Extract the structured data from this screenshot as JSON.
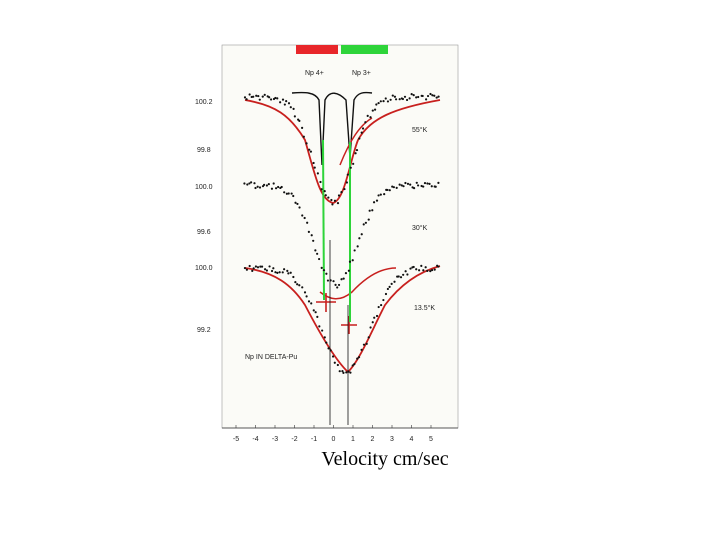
{
  "figure": {
    "legend_labels": [
      "Np 4+",
      "Np 3+"
    ],
    "y_labels": [
      "100.2",
      "99.8",
      "100.0",
      "99.6",
      "100.0",
      "99.2"
    ],
    "temperature_labels": [
      "55°K",
      "30°K",
      "13.5°K"
    ],
    "sample_label": "Np IN DELTA-Pu",
    "x_ticks": [
      -5,
      -4,
      -3,
      -2,
      -1,
      0,
      1,
      2,
      3,
      4,
      5
    ],
    "x_axis_label": "Velocity cm/sec"
  }
}
